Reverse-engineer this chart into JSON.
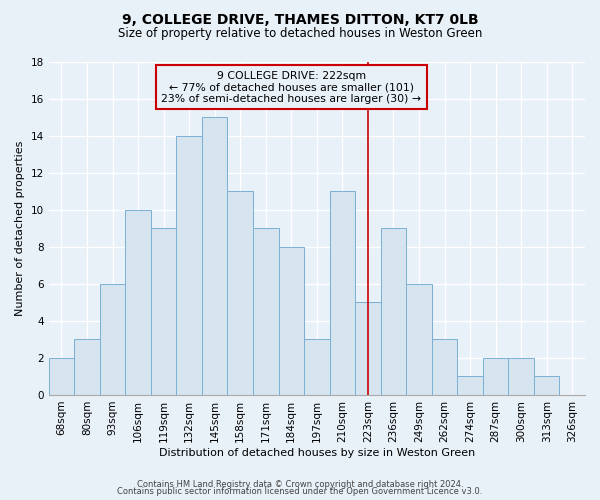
{
  "title": "9, COLLEGE DRIVE, THAMES DITTON, KT7 0LB",
  "subtitle": "Size of property relative to detached houses in Weston Green",
  "xlabel": "Distribution of detached houses by size in Weston Green",
  "ylabel": "Number of detached properties",
  "bin_labels": [
    "68sqm",
    "80sqm",
    "93sqm",
    "106sqm",
    "119sqm",
    "132sqm",
    "145sqm",
    "158sqm",
    "171sqm",
    "184sqm",
    "197sqm",
    "210sqm",
    "223sqm",
    "236sqm",
    "249sqm",
    "262sqm",
    "274sqm",
    "287sqm",
    "300sqm",
    "313sqm",
    "326sqm"
  ],
  "bar_values": [
    2,
    3,
    6,
    10,
    9,
    14,
    15,
    11,
    9,
    8,
    3,
    11,
    5,
    9,
    6,
    3,
    1,
    2,
    2,
    1,
    0
  ],
  "bar_color": "#d6e4f0",
  "bar_edgecolor": "#7bafd4",
  "ylim": [
    0,
    18
  ],
  "yticks": [
    0,
    2,
    4,
    6,
    8,
    10,
    12,
    14,
    16,
    18
  ],
  "vline_x_idx": 12,
  "vline_color": "#cc0000",
  "annotation_title": "9 COLLEGE DRIVE: 222sqm",
  "annotation_line1": "← 77% of detached houses are smaller (101)",
  "annotation_line2": "23% of semi-detached houses are larger (30) →",
  "annotation_box_edgecolor": "#cc0000",
  "footer1": "Contains HM Land Registry data © Crown copyright and database right 2024.",
  "footer2": "Contains public sector information licensed under the Open Government Licence v3.0.",
  "background_color": "#e8f0f8",
  "grid_color": "#ffffff",
  "title_fontsize": 10,
  "subtitle_fontsize": 8.5,
  "axis_label_fontsize": 8,
  "tick_fontsize": 7.5,
  "annotation_fontsize": 7.8,
  "footer_fontsize": 6
}
